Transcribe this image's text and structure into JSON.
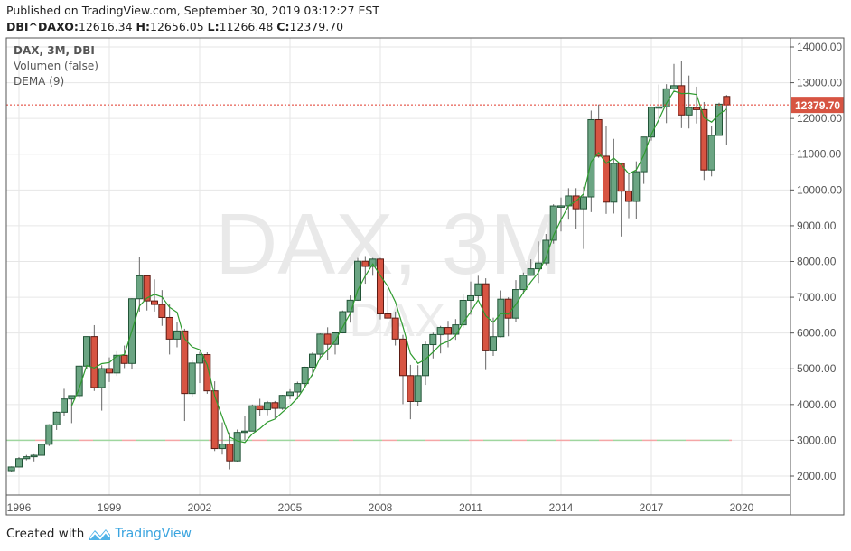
{
  "header": {
    "published": "Published on TradingView.com, September 30, 2019 03:12:27 EST",
    "symbol": "DBI^DAXO:",
    "open": "12616.34",
    "h_label": "H:",
    "high": "12656.05",
    "l_label": "L:",
    "low": "11266.48",
    "c_label": "C:",
    "close": "12379.70"
  },
  "legend": {
    "title": "DAX, 3M, DBI",
    "volume": "Volumen (false)",
    "dema": "DEMA (9)"
  },
  "watermark": {
    "main": "DAX, 3M",
    "sub": "DAX"
  },
  "footer": {
    "created_with": "Created with",
    "brand": "TradingView"
  },
  "chart_data": {
    "type": "candlestick",
    "interval": "3M",
    "y_axis_side": "right",
    "ylim": [
      1600,
      14200
    ],
    "y_ticks": [
      "14000.00",
      "13000.00",
      "12000.00",
      "11000.00",
      "10000.00",
      "9000.00",
      "8000.00",
      "7000.00",
      "6000.00",
      "5000.00",
      "4000.00",
      "3000.00",
      "2000.00"
    ],
    "x_ticks": [
      "1996",
      "1999",
      "2002",
      "2005",
      "2008",
      "2011",
      "2014",
      "2017",
      "2020"
    ],
    "last_price": 12379.7,
    "last_price_label": "12379.70",
    "horizontal_line": 3000,
    "grid": true,
    "indicator": {
      "name": "DEMA",
      "period": 9,
      "color": "#2e9b2e"
    },
    "colors": {
      "up": "#6ba583",
      "up_border": "#225437",
      "down": "#d75442",
      "down_border": "#5b1a13",
      "price_line": "#e0392b",
      "hline_green": "#9fd69f",
      "hline_red": "#f4a6a6"
    },
    "candles": [
      [
        "1995-Q4",
        2150,
        2270,
        2120,
        2254
      ],
      [
        "1996-Q1",
        2254,
        2530,
        2240,
        2486
      ],
      [
        "1996-Q2",
        2486,
        2590,
        2440,
        2540
      ],
      [
        "1996-Q3",
        2540,
        2610,
        2410,
        2580
      ],
      [
        "1996-Q4",
        2580,
        2900,
        2570,
        2889
      ],
      [
        "1997-Q1",
        2889,
        3450,
        2840,
        3431
      ],
      [
        "1997-Q2",
        3431,
        3810,
        3290,
        3785
      ],
      [
        "1997-Q3",
        3785,
        4440,
        3680,
        4155
      ],
      [
        "1997-Q4",
        4155,
        4260,
        3480,
        4250
      ],
      [
        "1998-Q1",
        4250,
        5090,
        4170,
        5075
      ],
      [
        "1998-Q2",
        5075,
        5910,
        4980,
        5900
      ],
      [
        "1998-Q3",
        5900,
        6220,
        4380,
        4475
      ],
      [
        "1998-Q4",
        4475,
        5100,
        3830,
        5006
      ],
      [
        "1999-Q1",
        5006,
        5320,
        4630,
        4884
      ],
      [
        "1999-Q2",
        4884,
        5490,
        4800,
        5378
      ],
      [
        "1999-Q3",
        5378,
        5650,
        5020,
        5150
      ],
      [
        "1999-Q4",
        5150,
        6970,
        4980,
        6958
      ],
      [
        "2000-Q1",
        6958,
        8136,
        6600,
        7599
      ],
      [
        "2000-Q2",
        7599,
        7620,
        6630,
        6898
      ],
      [
        "2000-Q3",
        6898,
        7500,
        6600,
        6798
      ],
      [
        "2000-Q4",
        6798,
        7200,
        6200,
        6434
      ],
      [
        "2001-Q1",
        6434,
        6800,
        5400,
        5830
      ],
      [
        "2001-Q2",
        5830,
        6300,
        5600,
        6058
      ],
      [
        "2001-Q3",
        6058,
        6120,
        3540,
        4308
      ],
      [
        "2001-Q4",
        4308,
        5250,
        4200,
        5160
      ],
      [
        "2002-Q1",
        5160,
        5470,
        4600,
        5397
      ],
      [
        "2002-Q2",
        5397,
        5460,
        4300,
        4383
      ],
      [
        "2002-Q3",
        4383,
        4650,
        2700,
        2769
      ],
      [
        "2002-Q4",
        2769,
        3500,
        2600,
        2893
      ],
      [
        "2003-Q1",
        2893,
        3220,
        2188,
        2424
      ],
      [
        "2003-Q2",
        2424,
        3300,
        2400,
        3221
      ],
      [
        "2003-Q3",
        3221,
        3680,
        3000,
        3257
      ],
      [
        "2003-Q4",
        3257,
        4000,
        3250,
        3965
      ],
      [
        "2004-Q1",
        3965,
        4160,
        3690,
        3856
      ],
      [
        "2004-Q2",
        3856,
        4100,
        3700,
        4052
      ],
      [
        "2004-Q3",
        4052,
        4100,
        3620,
        3893
      ],
      [
        "2004-Q4",
        3893,
        4270,
        3850,
        4256
      ],
      [
        "2005-Q1",
        4256,
        4430,
        4150,
        4349
      ],
      [
        "2005-Q2",
        4349,
        4640,
        4150,
        4587
      ],
      [
        "2005-Q3",
        4587,
        5060,
        4480,
        5044
      ],
      [
        "2005-Q4",
        5044,
        5460,
        4790,
        5408
      ],
      [
        "2006-Q1",
        5408,
        5990,
        5280,
        5970
      ],
      [
        "2006-Q2",
        5970,
        6160,
        5240,
        5683
      ],
      [
        "2006-Q3",
        5683,
        6010,
        5400,
        6004
      ],
      [
        "2006-Q4",
        6004,
        6630,
        5990,
        6597
      ],
      [
        "2007-Q1",
        6597,
        7050,
        6290,
        6917
      ],
      [
        "2007-Q2",
        6917,
        8100,
        6900,
        8007
      ],
      [
        "2007-Q3",
        8007,
        8151,
        7380,
        7862
      ],
      [
        "2007-Q4",
        7862,
        8100,
        7600,
        8067
      ],
      [
        "2008-Q1",
        8067,
        8100,
        6380,
        6535
      ],
      [
        "2008-Q2",
        6535,
        7230,
        6400,
        6418
      ],
      [
        "2008-Q3",
        6418,
        6600,
        5650,
        5831
      ],
      [
        "2008-Q4",
        5831,
        5950,
        4010,
        4810
      ],
      [
        "2009-Q1",
        4810,
        5110,
        3588,
        4085
      ],
      [
        "2009-Q2",
        4085,
        5100,
        3970,
        4809
      ],
      [
        "2009-Q3",
        4809,
        5760,
        4550,
        5675
      ],
      [
        "2009-Q4",
        5675,
        6010,
        5290,
        5957
      ],
      [
        "2010-Q1",
        5957,
        6200,
        5430,
        6154
      ],
      [
        "2010-Q2",
        6154,
        6340,
        5600,
        5966
      ],
      [
        "2010-Q3",
        5966,
        6390,
        5810,
        6229
      ],
      [
        "2010-Q4",
        6229,
        7080,
        6150,
        6914
      ],
      [
        "2011-Q1",
        6914,
        7440,
        6510,
        7041
      ],
      [
        "2011-Q2",
        7041,
        7600,
        6940,
        7376
      ],
      [
        "2011-Q3",
        7376,
        7530,
        4965,
        5502
      ],
      [
        "2011-Q4",
        5502,
        6430,
        5360,
        5898
      ],
      [
        "2012-Q1",
        5898,
        7190,
        5880,
        6947
      ],
      [
        "2012-Q2",
        6947,
        7000,
        5910,
        6416
      ],
      [
        "2012-Q3",
        6416,
        7480,
        6310,
        7216
      ],
      [
        "2012-Q4",
        7216,
        7690,
        7080,
        7612
      ],
      [
        "2013-Q1",
        7612,
        8060,
        7600,
        7795
      ],
      [
        "2013-Q2",
        7795,
        8560,
        7400,
        7959
      ],
      [
        "2013-Q3",
        7959,
        8770,
        7900,
        8594
      ],
      [
        "2013-Q4",
        8594,
        9600,
        8500,
        9552
      ],
      [
        "2014-Q1",
        9552,
        9790,
        8840,
        9556
      ],
      [
        "2014-Q2",
        9556,
        10050,
        9170,
        9833
      ],
      [
        "2014-Q3",
        9833,
        10050,
        8900,
        9474
      ],
      [
        "2014-Q4",
        9474,
        10090,
        8350,
        9806
      ],
      [
        "2015-Q1",
        9806,
        12220,
        9380,
        11966
      ],
      [
        "2015-Q2",
        11966,
        12390,
        10900,
        10945
      ],
      [
        "2015-Q3",
        10945,
        11800,
        9330,
        9660
      ],
      [
        "2015-Q4",
        9660,
        11430,
        9340,
        10743
      ],
      [
        "2016-Q1",
        10743,
        10750,
        8699,
        9966
      ],
      [
        "2016-Q2",
        9966,
        10480,
        9210,
        9680
      ],
      [
        "2016-Q3",
        9680,
        10800,
        9200,
        10511
      ],
      [
        "2016-Q4",
        10511,
        11480,
        10170,
        11481
      ],
      [
        "2017-Q1",
        11481,
        12320,
        11380,
        12313
      ],
      [
        "2017-Q2",
        12313,
        12950,
        11860,
        12325
      ],
      [
        "2017-Q3",
        12325,
        12960,
        11870,
        12829
      ],
      [
        "2017-Q4",
        12829,
        13526,
        12800,
        12918
      ],
      [
        "2018-Q1",
        12918,
        13596,
        11730,
        12097
      ],
      [
        "2018-Q2",
        12097,
        13200,
        11720,
        12306
      ],
      [
        "2018-Q3",
        12306,
        12890,
        11860,
        12247
      ],
      [
        "2018-Q4",
        12247,
        12460,
        10279,
        10559
      ],
      [
        "2019-Q1",
        10559,
        11800,
        10380,
        11526
      ],
      [
        "2019-Q2",
        11526,
        12440,
        11560,
        12399
      ],
      [
        "2019-Q3",
        12616.34,
        12656.05,
        11266.48,
        12379.7
      ]
    ]
  }
}
